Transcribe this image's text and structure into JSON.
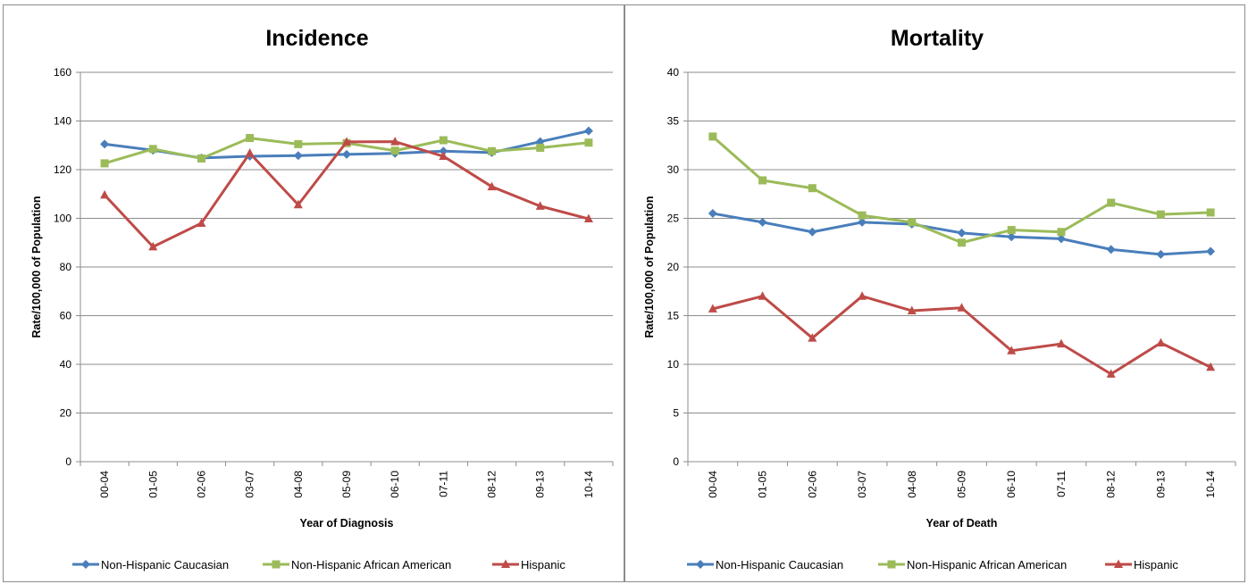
{
  "colors": {
    "Non-Hispanic Caucasian": "#4a7ebb",
    "Non-Hispanic African American": "#9bbb59",
    "Hispanic": "#be4b48",
    "grid": "#8c8c8c",
    "border": "#8c8c8c"
  },
  "chart_data": [
    {
      "type": "line",
      "title": "Incidence",
      "xlabel": "Year of Diagnosis",
      "ylabel": "Rate/100,000 of Population",
      "ylim": [
        0,
        160
      ],
      "yticks": [
        0,
        20,
        40,
        60,
        80,
        100,
        120,
        140,
        160
      ],
      "grid": true,
      "legend_position": "bottom",
      "categories": [
        "00-04",
        "01-05",
        "02-06",
        "03-07",
        "04-08",
        "05-09",
        "06-10",
        "07-11",
        "08-12",
        "09-13",
        "10-14"
      ],
      "series": [
        {
          "name": "Non-Hispanic Caucasian",
          "marker": "diamond",
          "values": [
            130.5,
            128.0,
            124.8,
            125.5,
            125.8,
            126.3,
            126.7,
            127.6,
            127.0,
            131.5,
            135.9
          ]
        },
        {
          "name": "Non-Hispanic African American",
          "marker": "square",
          "values": [
            122.6,
            128.5,
            124.6,
            133.0,
            130.5,
            130.9,
            127.8,
            132.1,
            127.6,
            129.0,
            131.1
          ]
        },
        {
          "name": "Hispanic",
          "marker": "triangle",
          "values": [
            109.6,
            88.3,
            98.0,
            126.8,
            105.6,
            131.4,
            131.5,
            125.5,
            113.0,
            105.0,
            99.8
          ]
        }
      ]
    },
    {
      "type": "line",
      "title": "Mortality",
      "xlabel": "Year of Death",
      "ylabel": "Rate/100,000 of Population",
      "ylim": [
        0,
        40
      ],
      "yticks": [
        0,
        5,
        10,
        15,
        20,
        25,
        30,
        35,
        40
      ],
      "grid": true,
      "legend_position": "bottom",
      "categories": [
        "00-04",
        "01-05",
        "02-06",
        "03-07",
        "04-08",
        "05-09",
        "06-10",
        "07-11",
        "08-12",
        "09-13",
        "10-14"
      ],
      "series": [
        {
          "name": "Non-Hispanic Caucasian",
          "marker": "diamond",
          "values": [
            25.5,
            24.6,
            23.6,
            24.6,
            24.4,
            23.5,
            23.1,
            22.9,
            21.8,
            21.3,
            21.6
          ]
        },
        {
          "name": "Non-Hispanic African American",
          "marker": "square",
          "values": [
            33.4,
            28.9,
            28.1,
            25.3,
            24.6,
            22.5,
            23.8,
            23.6,
            26.6,
            25.4,
            25.6
          ]
        },
        {
          "name": "Hispanic",
          "marker": "triangle",
          "values": [
            15.7,
            17.0,
            12.7,
            17.0,
            15.5,
            15.8,
            11.4,
            12.1,
            9.0,
            12.2,
            9.7
          ]
        }
      ]
    }
  ]
}
